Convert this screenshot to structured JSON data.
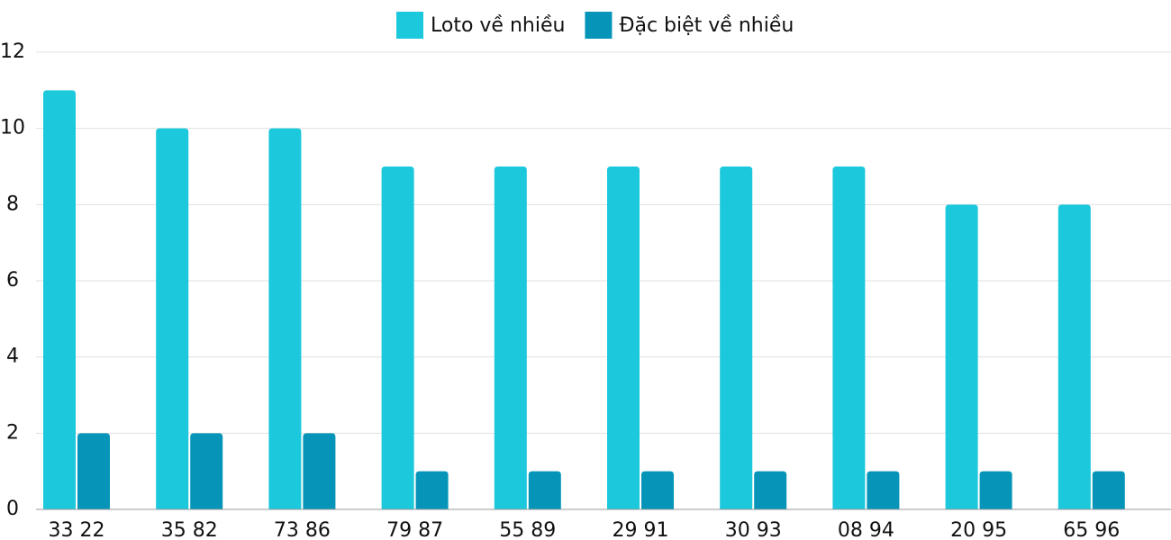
{
  "chart_data": {
    "type": "bar",
    "categories": [
      "33 22",
      "35 82",
      "73 86",
      "79 87",
      "55 89",
      "29 91",
      "30 93",
      "08 94",
      "20 95",
      "65 96"
    ],
    "series": [
      {
        "name": "Loto về nhiều",
        "color": "#1bc8dc",
        "values": [
          11,
          10,
          10,
          9,
          9,
          9,
          9,
          9,
          8,
          8
        ]
      },
      {
        "name": "Đặc biệt về nhiều",
        "color": "#0695b8",
        "values": [
          2,
          2,
          2,
          1,
          1,
          1,
          1,
          1,
          1,
          1
        ]
      }
    ],
    "ylim": [
      0,
      12
    ],
    "yticks": [
      0,
      2,
      4,
      6,
      8,
      10,
      12
    ],
    "grid": true,
    "legend": "top"
  }
}
